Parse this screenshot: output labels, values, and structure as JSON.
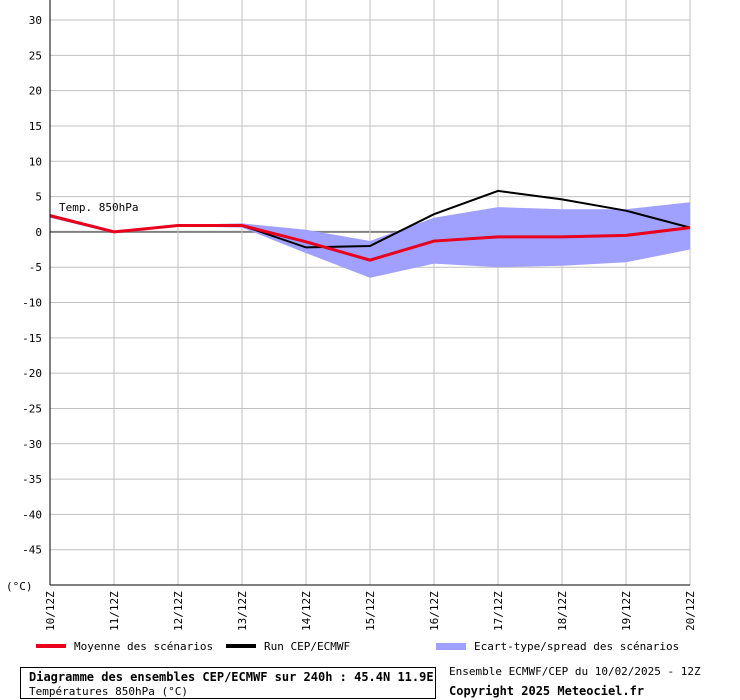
{
  "chart_data": {
    "type": "line",
    "x_categories": [
      "10/12Z",
      "11/12Z",
      "12/12Z",
      "13/12Z",
      "14/12Z",
      "15/12Z",
      "16/12Z",
      "17/12Z",
      "18/12Z",
      "19/12Z",
      "20/12Z"
    ],
    "y_ticks": [
      30,
      25,
      20,
      15,
      10,
      5,
      0,
      -5,
      -10,
      -15,
      -20,
      -25,
      -30,
      -35,
      -40,
      -45
    ],
    "ylim": [
      -50,
      30
    ],
    "yunit_label": "(°C)",
    "grid": true,
    "annotation": "Temp. 850hPa",
    "spread": {
      "name": "Ecart-type/spread des scénarios",
      "upper": [
        2.5,
        0.0,
        1.0,
        1.2,
        0.3,
        -1.3,
        2.0,
        3.5,
        3.2,
        3.2,
        4.2
      ],
      "lower": [
        2.0,
        -0.2,
        0.8,
        0.6,
        -3.0,
        -6.5,
        -4.5,
        -5.0,
        -4.8,
        -4.3,
        -2.5
      ]
    },
    "series": [
      {
        "name": "Run CEP/ECMWF",
        "values": [
          2.3,
          0.0,
          0.9,
          0.9,
          -2.2,
          -2.0,
          2.5,
          5.8,
          4.6,
          3.0,
          0.6
        ]
      },
      {
        "name": "Moyenne des scénarios",
        "values": [
          2.3,
          0.0,
          0.9,
          0.9,
          -1.4,
          -4.0,
          -1.3,
          -0.7,
          -0.7,
          -0.5,
          0.6
        ]
      }
    ]
  },
  "colors": {
    "mean": "#e8001c",
    "run": "#000000",
    "spread": "#a0a0ff",
    "grid": "#c0c0c0"
  },
  "legend": {
    "mean_label": "Moyenne des scénarios",
    "run_label": "Run CEP/ECMWF",
    "spread_label": "Ecart-type/spread des scénarios"
  },
  "caption": {
    "title": "Diagramme des ensembles CEP/ECMWF sur 240h : 45.4N 11.9E",
    "subtitle": "Températures 850hPa (°C)",
    "source": "Ensemble ECMWF/CEP du 10/02/2025 - 12Z",
    "copyright": "Copyright 2025 Meteociel.fr"
  }
}
